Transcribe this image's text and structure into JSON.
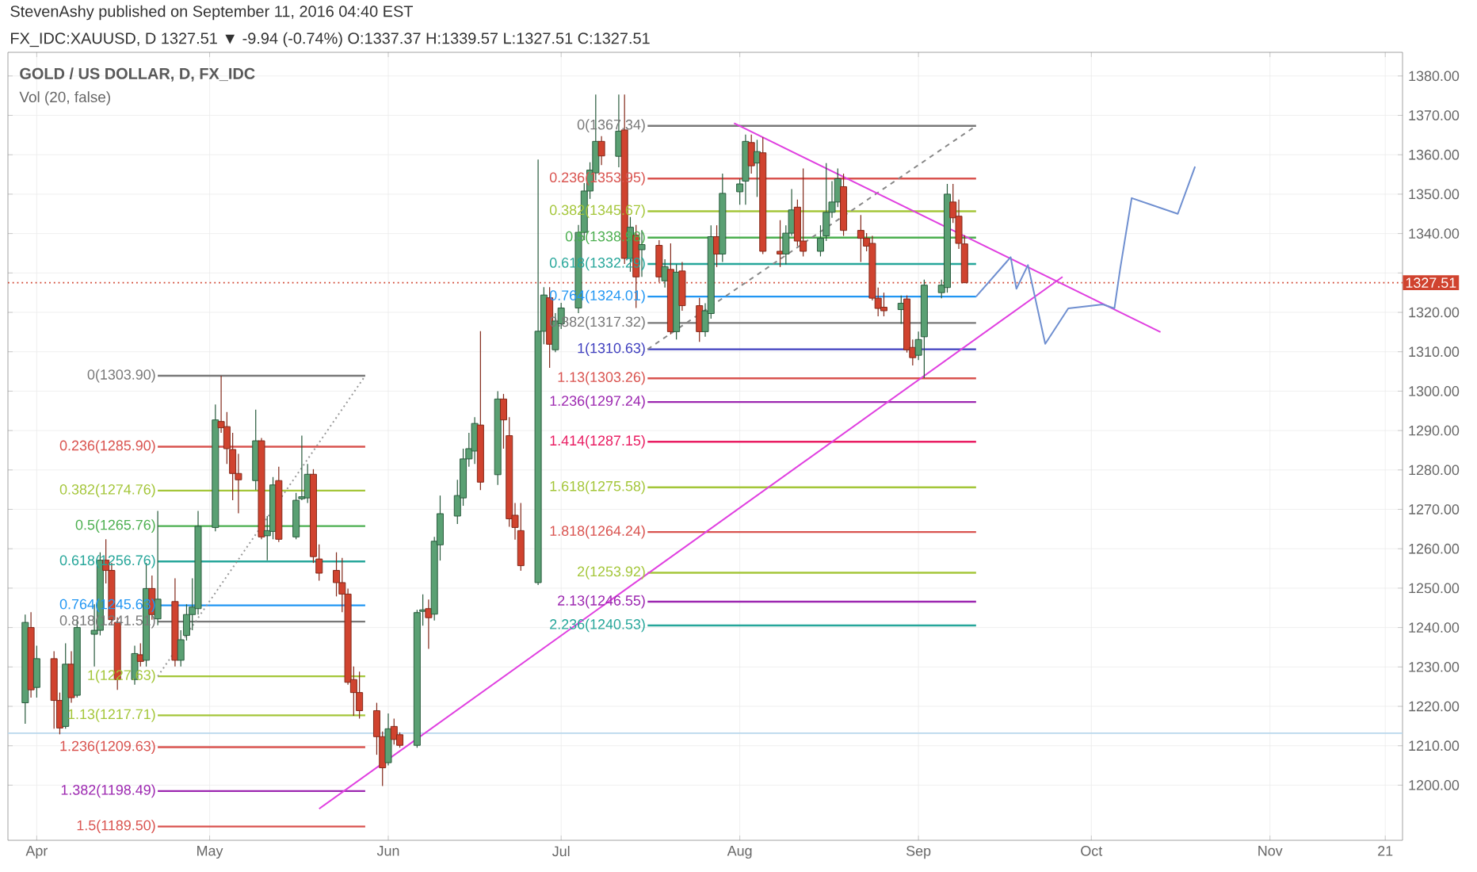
{
  "chart_data": {
    "type": "candlestick",
    "title": "GOLD / US DOLLAR, D, FX_IDC",
    "subtitle": "Vol (20, false)",
    "annotations": [
      "StevenAshy published on September 11, 2016 04:40 EST",
      "FX_IDC:XAUUSD, D 1327.51 ▼ -9.94 (-0.74%) O:1337.37 H:1339.57 L:1327.51 C:1327.51"
    ],
    "x": [
      "2016-03-30",
      "2016-03-31",
      "2016-04-01",
      "2016-04-04",
      "2016-04-05",
      "2016-04-06",
      "2016-04-07",
      "2016-04-08",
      "2016-04-11",
      "2016-04-12",
      "2016-04-13",
      "2016-04-14",
      "2016-04-15",
      "2016-04-18",
      "2016-04-19",
      "2016-04-20",
      "2016-04-21",
      "2016-04-22",
      "2016-04-25",
      "2016-04-26",
      "2016-04-27",
      "2016-04-28",
      "2016-04-29",
      "2016-05-02",
      "2016-05-03",
      "2016-05-04",
      "2016-05-05",
      "2016-05-06",
      "2016-05-09",
      "2016-05-10",
      "2016-05-11",
      "2016-05-12",
      "2016-05-13",
      "2016-05-16",
      "2016-05-17",
      "2016-05-18",
      "2016-05-19",
      "2016-05-20",
      "2016-05-23",
      "2016-05-24",
      "2016-05-25",
      "2016-05-26",
      "2016-05-27",
      "2016-05-30",
      "2016-05-31",
      "2016-06-01",
      "2016-06-02",
      "2016-06-03",
      "2016-06-06",
      "2016-06-07",
      "2016-06-08",
      "2016-06-09",
      "2016-06-10",
      "2016-06-13",
      "2016-06-14",
      "2016-06-15",
      "2016-06-16",
      "2016-06-17",
      "2016-06-20",
      "2016-06-21",
      "2016-06-22",
      "2016-06-23",
      "2016-06-24",
      "2016-06-27",
      "2016-06-28",
      "2016-06-29",
      "2016-06-30",
      "2016-07-01",
      "2016-07-04",
      "2016-07-05",
      "2016-07-06",
      "2016-07-07",
      "2016-07-08",
      "2016-07-11",
      "2016-07-12",
      "2016-07-13",
      "2016-07-14",
      "2016-07-15",
      "2016-07-18",
      "2016-07-19",
      "2016-07-20",
      "2016-07-21",
      "2016-07-22",
      "2016-07-25",
      "2016-07-26",
      "2016-07-27",
      "2016-07-28",
      "2016-07-29",
      "2016-08-01",
      "2016-08-02",
      "2016-08-03",
      "2016-08-04",
      "2016-08-05",
      "2016-08-08",
      "2016-08-09",
      "2016-08-10",
      "2016-08-11",
      "2016-08-12",
      "2016-08-15",
      "2016-08-16",
      "2016-08-17",
      "2016-08-18",
      "2016-08-19",
      "2016-08-22",
      "2016-08-23",
      "2016-08-24",
      "2016-08-25",
      "2016-08-26",
      "2016-08-29",
      "2016-08-30",
      "2016-08-31",
      "2016-09-01",
      "2016-09-02",
      "2016-09-05",
      "2016-09-06",
      "2016-09-07",
      "2016-09-08",
      "2016-09-09"
    ],
    "ohlc": [
      [
        1220.9,
        1243.3,
        1215.6,
        1241.3
      ],
      [
        1240.0,
        1243.9,
        1222.2,
        1224.2
      ],
      [
        1224.8,
        1235.4,
        1222.2,
        1232.1
      ],
      [
        1232.1,
        1234.0,
        1214.3,
        1221.5
      ],
      [
        1221.5,
        1223.5,
        1212.9,
        1214.5
      ],
      [
        1214.9,
        1236.0,
        1214.3,
        1230.7
      ],
      [
        1230.7,
        1234.0,
        1220.9,
        1222.2
      ],
      [
        1222.8,
        1242.0,
        1222.2,
        1240.0
      ],
      [
        1238.3,
        1245.9,
        1230.1,
        1239.3
      ],
      [
        1239.3,
        1259.1,
        1238.0,
        1257.1
      ],
      [
        1257.1,
        1262.4,
        1251.2,
        1254.5
      ],
      [
        1254.5,
        1256.4,
        1240.6,
        1242.0
      ],
      [
        1241.3,
        1242.6,
        1224.2,
        1226.8
      ],
      [
        1226.8,
        1235.4,
        1225.5,
        1233.4
      ],
      [
        1233.1,
        1236.0,
        1230.1,
        1231.4
      ],
      [
        1231.7,
        1256.4,
        1230.1,
        1249.9
      ],
      [
        1249.9,
        1253.2,
        1242.0,
        1243.3
      ],
      [
        1242.2,
        1269.6,
        1240.6,
        1247.2
      ],
      [
        1246.6,
        1252.5,
        1230.1,
        1231.7
      ],
      [
        1231.7,
        1239.3,
        1230.1,
        1236.9
      ],
      [
        1238.0,
        1245.9,
        1236.7,
        1243.3
      ],
      [
        1243.3,
        1252.5,
        1239.3,
        1245.2
      ],
      [
        1244.8,
        1269.6,
        1243.3,
        1265.7
      ],
      [
        1265.4,
        1296.6,
        1264.4,
        1292.7
      ],
      [
        1292.3,
        1303.9,
        1289.4,
        1290.7
      ],
      [
        1291.0,
        1294.7,
        1281.5,
        1285.4
      ],
      [
        1285.2,
        1289.4,
        1272.3,
        1279.1
      ],
      [
        1279.1,
        1284.1,
        1269.0,
        1277.5
      ],
      [
        1277.3,
        1295.3,
        1274.9,
        1287.4
      ],
      [
        1287.4,
        1288.1,
        1262.4,
        1263.0
      ],
      [
        1263.3,
        1268.3,
        1257.1,
        1264.6
      ],
      [
        1264.4,
        1278.2,
        1262.4,
        1276.2
      ],
      [
        1277.3,
        1280.8,
        1261.7,
        1262.4
      ],
      [
        1263.0,
        1274.2,
        1262.4,
        1272.3
      ],
      [
        1272.7,
        1288.7,
        1272.3,
        1273.2
      ],
      [
        1272.9,
        1281.5,
        1271.6,
        1278.9
      ],
      [
        1278.9,
        1280.2,
        1256.4,
        1258.0
      ],
      [
        1257.4,
        1261.1,
        1251.9,
        1253.8
      ],
      [
        1254.5,
        1259.1,
        1247.9,
        1251.4
      ],
      [
        1251.4,
        1257.7,
        1243.9,
        1248.5
      ],
      [
        1248.5,
        1249.9,
        1225.5,
        1226.1
      ],
      [
        1226.8,
        1230.1,
        1217.6,
        1223.5
      ],
      [
        1223.5,
        1228.8,
        1216.9,
        1218.9
      ],
      [
        1218.9,
        1220.9,
        1207.7,
        1212.3
      ],
      [
        1212.3,
        1213.6,
        1199.8,
        1204.4
      ],
      [
        1205.7,
        1218.2,
        1205.0,
        1214.3
      ],
      [
        1214.9,
        1216.9,
        1210.3,
        1211.6
      ],
      [
        1212.8,
        1213.4,
        1209.5,
        1210.1
      ],
      [
        1210.1,
        1244.5,
        1209.5,
        1243.8
      ],
      [
        1244.1,
        1248.4,
        1240.5,
        1244.5
      ],
      [
        1244.8,
        1247.1,
        1234.6,
        1242.5
      ],
      [
        1243.4,
        1263.0,
        1241.8,
        1261.9
      ],
      [
        1261.0,
        1273.5,
        1257.0,
        1268.9
      ],
      [
        1268.3,
        1277.5,
        1266.3,
        1273.5
      ],
      [
        1272.9,
        1285.4,
        1270.9,
        1282.8
      ],
      [
        1282.8,
        1289.4,
        1280.8,
        1285.4
      ],
      [
        1284.8,
        1293.4,
        1281.5,
        1291.8
      ],
      [
        1291.4,
        1315.2,
        1274.9,
        1276.9
      ],
      [
        1278.8,
        1300.0,
        1276.2,
        1298.0
      ],
      [
        1298.0,
        1299.3,
        1285.4,
        1292.7
      ],
      [
        1288.7,
        1293.4,
        1265.6,
        1267.6
      ],
      [
        1268.5,
        1271.6,
        1262.3,
        1265.4
      ],
      [
        1264.6,
        1271.6,
        1254.4,
        1255.7
      ],
      [
        1251.4,
        1358.8,
        1250.8,
        1315.2
      ],
      [
        1315.2,
        1326.4,
        1311.9,
        1324.4
      ],
      [
        1323.7,
        1326.4,
        1305.9,
        1311.9
      ],
      [
        1310.5,
        1319.8,
        1309.9,
        1317.8
      ],
      [
        1317.1,
        1322.4,
        1315.8,
        1321.1
      ],
      [
        1321.1,
        1342.2,
        1319.8,
        1340.3
      ],
      [
        1340.3,
        1352.8,
        1338.3,
        1350.8
      ],
      [
        1350.8,
        1358.1,
        1348.8,
        1356.1
      ],
      [
        1355.4,
        1375.3,
        1353.5,
        1363.4
      ],
      [
        1363.4,
        1364.7,
        1357.4,
        1359.7
      ],
      [
        1359.6,
        1375.3,
        1356.8,
        1366.0
      ],
      [
        1366.3,
        1375.3,
        1332.3,
        1333.7
      ],
      [
        1333.7,
        1344.2,
        1330.3,
        1341.6
      ],
      [
        1339.6,
        1342.2,
        1321.1,
        1329.0
      ],
      [
        1335.9,
        1340.9,
        1329.0,
        1337.2
      ],
      [
        1337.0,
        1338.3,
        1327.7,
        1329.0
      ],
      [
        1328.0,
        1333.5,
        1326.3,
        1331.6
      ],
      [
        1330.9,
        1337.5,
        1314.4,
        1315.1
      ],
      [
        1315.1,
        1332.2,
        1313.1,
        1330.2
      ],
      [
        1330.5,
        1332.8,
        1320.4,
        1321.7
      ],
      [
        1321.7,
        1323.7,
        1312.5,
        1315.1
      ],
      [
        1315.1,
        1322.3,
        1313.8,
        1320.4
      ],
      [
        1319.7,
        1342.1,
        1318.4,
        1339.2
      ],
      [
        1339.2,
        1342.1,
        1331.5,
        1334.8
      ],
      [
        1334.8,
        1355.2,
        1332.8,
        1350.2
      ],
      [
        1350.6,
        1353.9,
        1347.3,
        1352.6
      ],
      [
        1353.3,
        1365.1,
        1347.3,
        1363.4
      ],
      [
        1363.1,
        1365.1,
        1355.2,
        1357.2
      ],
      [
        1357.9,
        1363.8,
        1349.3,
        1360.8
      ],
      [
        1360.5,
        1364.4,
        1334.8,
        1335.5
      ],
      [
        1335.5,
        1343.4,
        1331.5,
        1334.8
      ],
      [
        1334.8,
        1342.1,
        1332.2,
        1340.1
      ],
      [
        1340.1,
        1351.3,
        1339.4,
        1346.0
      ],
      [
        1346.7,
        1348.6,
        1336.8,
        1338.1
      ],
      [
        1338.1,
        1356.5,
        1334.2,
        1335.5
      ],
      [
        1335.5,
        1342.1,
        1334.2,
        1338.8
      ],
      [
        1339.4,
        1357.9,
        1338.1,
        1345.4
      ],
      [
        1345.4,
        1353.3,
        1344.0,
        1348.0
      ],
      [
        1348.0,
        1356.5,
        1346.7,
        1353.9
      ],
      [
        1351.9,
        1355.2,
        1339.4,
        1340.8
      ],
      [
        1340.8,
        1344.7,
        1332.8,
        1338.8
      ],
      [
        1338.8,
        1340.1,
        1335.5,
        1336.8
      ],
      [
        1337.5,
        1339.4,
        1323.0,
        1323.6
      ],
      [
        1323.6,
        1326.3,
        1319.0,
        1321.0
      ],
      [
        1321.3,
        1325.0,
        1319.0,
        1320.4
      ],
      [
        1320.7,
        1324.3,
        1317.1,
        1322.3
      ],
      [
        1323.4,
        1324.3,
        1309.8,
        1310.5
      ],
      [
        1311.1,
        1313.1,
        1306.5,
        1308.5
      ],
      [
        1309.1,
        1315.1,
        1307.9,
        1313.1
      ],
      [
        1313.8,
        1328.3,
        1303.3,
        1326.9
      ],
      [
        1325.0,
        1328.3,
        1323.6,
        1326.9
      ],
      [
        1326.3,
        1352.6,
        1325.0,
        1350.0
      ],
      [
        1348.0,
        1352.6,
        1342.7,
        1344.0
      ],
      [
        1344.4,
        1348.6,
        1336.1,
        1337.5
      ],
      [
        1337.37,
        1339.57,
        1327.51,
        1327.51
      ]
    ],
    "series": [
      {
        "type": "line",
        "name": "0(1303.90)",
        "color": "#787878",
        "x": [
          "2016-04-22",
          "2016-05-28"
        ],
        "values": [
          1303.9,
          1303.9
        ]
      },
      {
        "type": "line",
        "name": "0.236(1285.90)",
        "color": "#d9534f",
        "x": [
          "2016-04-22",
          "2016-05-28"
        ],
        "values": [
          1285.9,
          1285.9
        ]
      },
      {
        "type": "line",
        "name": "0.382(1274.76)",
        "color": "#a4c639",
        "x": [
          "2016-04-22",
          "2016-05-28"
        ],
        "values": [
          1274.76,
          1274.76
        ]
      },
      {
        "type": "line",
        "name": "0.5(1265.76)",
        "color": "#4caf50",
        "x": [
          "2016-04-22",
          "2016-05-28"
        ],
        "values": [
          1265.76,
          1265.76
        ]
      },
      {
        "type": "line",
        "name": "0.618(1256.76)",
        "color": "#26a69a",
        "x": [
          "2016-04-22",
          "2016-05-28"
        ],
        "values": [
          1256.76,
          1256.76
        ]
      },
      {
        "type": "line",
        "name": "0.764(1245.63)",
        "color": "#2196f3",
        "x": [
          "2016-04-22",
          "2016-05-28"
        ],
        "values": [
          1245.63,
          1245.63
        ]
      },
      {
        "type": "line",
        "name": "0.818(1241.51)",
        "color": "#787878",
        "x": [
          "2016-04-22",
          "2016-05-28"
        ],
        "values": [
          1241.51,
          1241.51
        ]
      },
      {
        "type": "line",
        "name": "1(1227.63)",
        "color": "#a4c639",
        "x": [
          "2016-04-22",
          "2016-05-28"
        ],
        "values": [
          1227.63,
          1227.63
        ]
      },
      {
        "type": "line",
        "name": "1.13(1217.71)",
        "color": "#a4c639",
        "x": [
          "2016-04-22",
          "2016-05-28"
        ],
        "values": [
          1217.71,
          1217.71
        ]
      },
      {
        "type": "line",
        "name": "1.236(1209.63)",
        "color": "#d9534f",
        "x": [
          "2016-04-22",
          "2016-05-28"
        ],
        "values": [
          1209.63,
          1209.63
        ]
      },
      {
        "type": "line",
        "name": "1.382(1198.49)",
        "color": "#9c27b0",
        "x": [
          "2016-04-22",
          "2016-05-28"
        ],
        "values": [
          1198.49,
          1198.49
        ]
      },
      {
        "type": "line",
        "name": "1.5(1189.50)",
        "color": "#d9534f",
        "x": [
          "2016-04-22",
          "2016-05-28"
        ],
        "values": [
          1189.5,
          1189.5
        ]
      },
      {
        "type": "line",
        "name": "0(1367.34)",
        "color": "#787878",
        "x": [
          "2016-07-16",
          "2016-09-11"
        ],
        "values": [
          1367.34,
          1367.34
        ]
      },
      {
        "type": "line",
        "name": "0.236(1353.95)",
        "color": "#d9534f",
        "x": [
          "2016-07-16",
          "2016-09-11"
        ],
        "values": [
          1353.95,
          1353.95
        ]
      },
      {
        "type": "line",
        "name": "0.382(1345.67)",
        "color": "#a4c639",
        "x": [
          "2016-07-16",
          "2016-09-11"
        ],
        "values": [
          1345.67,
          1345.67
        ]
      },
      {
        "type": "line",
        "name": "0.5(1338.98)",
        "color": "#4caf50",
        "x": [
          "2016-07-16",
          "2016-09-11"
        ],
        "values": [
          1338.98,
          1338.98
        ]
      },
      {
        "type": "line",
        "name": "0.618(1332.29)",
        "color": "#26a69a",
        "x": [
          "2016-07-16",
          "2016-09-11"
        ],
        "values": [
          1332.29,
          1332.29
        ]
      },
      {
        "type": "line",
        "name": "0.764(1324.01)",
        "color": "#2196f3",
        "x": [
          "2016-07-16",
          "2016-09-11"
        ],
        "values": [
          1324.01,
          1324.01
        ]
      },
      {
        "type": "line",
        "name": "0.882(1317.32)",
        "color": "#787878",
        "x": [
          "2016-07-16",
          "2016-09-11"
        ],
        "values": [
          1317.32,
          1317.32
        ]
      },
      {
        "type": "line",
        "name": "1(1310.63)",
        "color": "#3f3fbf",
        "x": [
          "2016-07-16",
          "2016-09-11"
        ],
        "values": [
          1310.63,
          1310.63
        ]
      },
      {
        "type": "line",
        "name": "1.13(1303.26)",
        "color": "#d9534f",
        "x": [
          "2016-07-16",
          "2016-09-11"
        ],
        "values": [
          1303.26,
          1303.26
        ]
      },
      {
        "type": "line",
        "name": "1.236(1297.24)",
        "color": "#9c27b0",
        "x": [
          "2016-07-16",
          "2016-09-11"
        ],
        "values": [
          1297.24,
          1297.24
        ]
      },
      {
        "type": "line",
        "name": "1.414(1287.15)",
        "color": "#e91e63",
        "x": [
          "2016-07-16",
          "2016-09-11"
        ],
        "values": [
          1287.15,
          1287.15
        ]
      },
      {
        "type": "line",
        "name": "1.618(1275.58)",
        "color": "#a4c639",
        "x": [
          "2016-07-16",
          "2016-09-11"
        ],
        "values": [
          1275.58,
          1275.58
        ]
      },
      {
        "type": "line",
        "name": "1.818(1264.24)",
        "color": "#d9534f",
        "x": [
          "2016-07-16",
          "2016-09-11"
        ],
        "values": [
          1264.24,
          1264.24
        ]
      },
      {
        "type": "line",
        "name": "2(1253.92)",
        "color": "#a4c639",
        "x": [
          "2016-07-16",
          "2016-09-11"
        ],
        "values": [
          1253.92,
          1253.92
        ]
      },
      {
        "type": "line",
        "name": "2.13(1246.55)",
        "color": "#9c27b0",
        "x": [
          "2016-07-16",
          "2016-09-11"
        ],
        "values": [
          1246.55,
          1246.55
        ]
      },
      {
        "type": "line",
        "name": "2.236(1240.53)",
        "color": "#26a69a",
        "x": [
          "2016-07-16",
          "2016-09-11"
        ],
        "values": [
          1240.53,
          1240.53
        ]
      },
      {
        "type": "line",
        "color": "#999999",
        "line_style": "dotted",
        "x": [
          "2016-04-22",
          "2016-05-28"
        ],
        "values": [
          1227.63,
          1303.9
        ]
      },
      {
        "type": "line",
        "color": "#888888",
        "line_style": "dashed",
        "x": [
          "2016-07-16",
          "2016-09-11"
        ],
        "values": [
          1310.63,
          1367.34
        ]
      },
      {
        "type": "line",
        "color": "#e040e0",
        "x": [
          "2016-05-20",
          "2016-09-26"
        ],
        "values": [
          1194,
          1329
        ]
      },
      {
        "type": "line",
        "color": "#e040e0",
        "x": [
          "2016-07-31",
          "2016-10-13"
        ],
        "values": [
          1368,
          1315
        ]
      },
      {
        "type": "line",
        "color": "#6f8fd0",
        "x": [
          "2016-09-11",
          "2016-09-17",
          "2016-09-18",
          "2016-09-20",
          "2016-09-23",
          "2016-09-27",
          "2016-10-03",
          "2016-10-05",
          "2016-10-06",
          "2016-10-08",
          "2016-10-16",
          "2016-10-19"
        ],
        "values": [
          1324,
          1334,
          1326,
          1332,
          1312,
          1321,
          1322,
          1321,
          1331,
          1349,
          1345,
          1357
        ]
      }
    ],
    "ref_lines": [
      {
        "axis": "y",
        "value": 1327.51,
        "label": "1327.51",
        "color": "#d0432f",
        "line_style": "dotted"
      },
      {
        "axis": "y",
        "value": 1213.2,
        "color": "#b9d7ec"
      }
    ],
    "xlim": [
      "2016-03-27",
      "2016-11-24"
    ],
    "xticks": [
      {
        "value": "2016-04-01",
        "label": "Apr"
      },
      {
        "value": "2016-05-01",
        "label": "May"
      },
      {
        "value": "2016-06-01",
        "label": "Jun"
      },
      {
        "value": "2016-07-01",
        "label": "Jul"
      },
      {
        "value": "2016-08-01",
        "label": "Aug"
      },
      {
        "value": "2016-09-01",
        "label": "Sep"
      },
      {
        "value": "2016-10-01",
        "label": "Oct"
      },
      {
        "value": "2016-11-01",
        "label": "Nov"
      },
      {
        "value": "2016-11-21",
        "label": "21"
      }
    ],
    "ylim": [
      1186,
      1386
    ],
    "yticks": [
      {
        "value": 1200,
        "label": "1200.00"
      },
      {
        "value": 1210,
        "label": "1210.00"
      },
      {
        "value": 1220,
        "label": "1220.00"
      },
      {
        "value": 1230,
        "label": "1230.00"
      },
      {
        "value": 1240,
        "label": "1240.00"
      },
      {
        "value": 1250,
        "label": "1250.00"
      },
      {
        "value": 1260,
        "label": "1260.00"
      },
      {
        "value": 1270,
        "label": "1270.00"
      },
      {
        "value": 1280,
        "label": "1280.00"
      },
      {
        "value": 1290,
        "label": "1290.00"
      },
      {
        "value": 1300,
        "label": "1300.00"
      },
      {
        "value": 1310,
        "label": "1310.00"
      },
      {
        "value": 1320,
        "label": "1320.00"
      },
      {
        "value": 1330,
        "label": null
      },
      {
        "value": 1340,
        "label": "1340.00"
      },
      {
        "value": 1350,
        "label": "1350.00"
      },
      {
        "value": 1360,
        "label": "1360.00"
      },
      {
        "value": 1370,
        "label": "1370.00"
      },
      {
        "value": 1380,
        "label": "1380.00"
      }
    ],
    "grid": true
  }
}
